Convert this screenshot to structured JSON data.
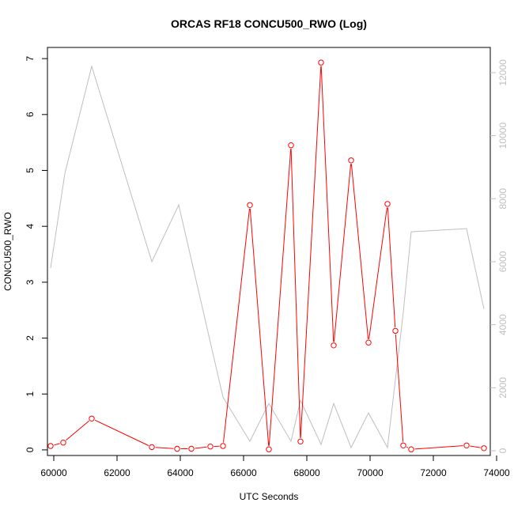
{
  "chart_data": {
    "type": "line",
    "title": "ORCAS RF18 CONCU500_RWO (Log)",
    "xlabel": "UTC Seconds",
    "ylabel": "CONCU500_RWO",
    "xlim": [
      59800,
      73800
    ],
    "ylim_left": [
      -0.1,
      7.2
    ],
    "ylim_right": [
      -150,
      12800
    ],
    "x_ticks": [
      60000,
      62000,
      64000,
      66000,
      68000,
      70000,
      72000,
      74000
    ],
    "y_ticks_left": [
      0,
      1,
      2,
      3,
      4,
      5,
      6,
      7
    ],
    "y_ticks_right": [
      0,
      2000,
      4000,
      6000,
      8000,
      10000,
      12000
    ],
    "colors": {
      "primary": "#ff0000",
      "secondary": "#bebebe",
      "axis": "#000000",
      "right_axis": "#bfbfbf"
    },
    "series": [
      {
        "axis": "left",
        "color": "#ff0000",
        "style": "line-with-open-circles",
        "x": [
          59900,
          60300,
          61200,
          63100,
          63900,
          64350,
          64950,
          65350,
          66200,
          66800,
          67500,
          67800,
          68450,
          68850,
          69400,
          69950,
          70550,
          70800,
          71050,
          71300,
          73050,
          73600
        ],
        "y": [
          0.07,
          0.13,
          0.56,
          0.05,
          0.02,
          0.02,
          0.06,
          0.07,
          4.38,
          0.01,
          5.45,
          0.15,
          6.93,
          1.87,
          5.18,
          1.92,
          4.4,
          2.13,
          0.08,
          0.01,
          0.08,
          0.03
        ]
      },
      {
        "axis": "right",
        "color": "#bebebe",
        "style": "line",
        "x": [
          59900,
          60350,
          61200,
          63100,
          63950,
          65350,
          66200,
          66800,
          67500,
          67800,
          68450,
          68850,
          69400,
          69950,
          70550,
          71050,
          71300,
          73050,
          73600
        ],
        "y": [
          5800,
          8800,
          12200,
          6000,
          7800,
          1700,
          300,
          1500,
          300,
          1600,
          200,
          1500,
          100,
          1200,
          100,
          4400,
          6950,
          7050,
          4500
        ]
      }
    ]
  }
}
